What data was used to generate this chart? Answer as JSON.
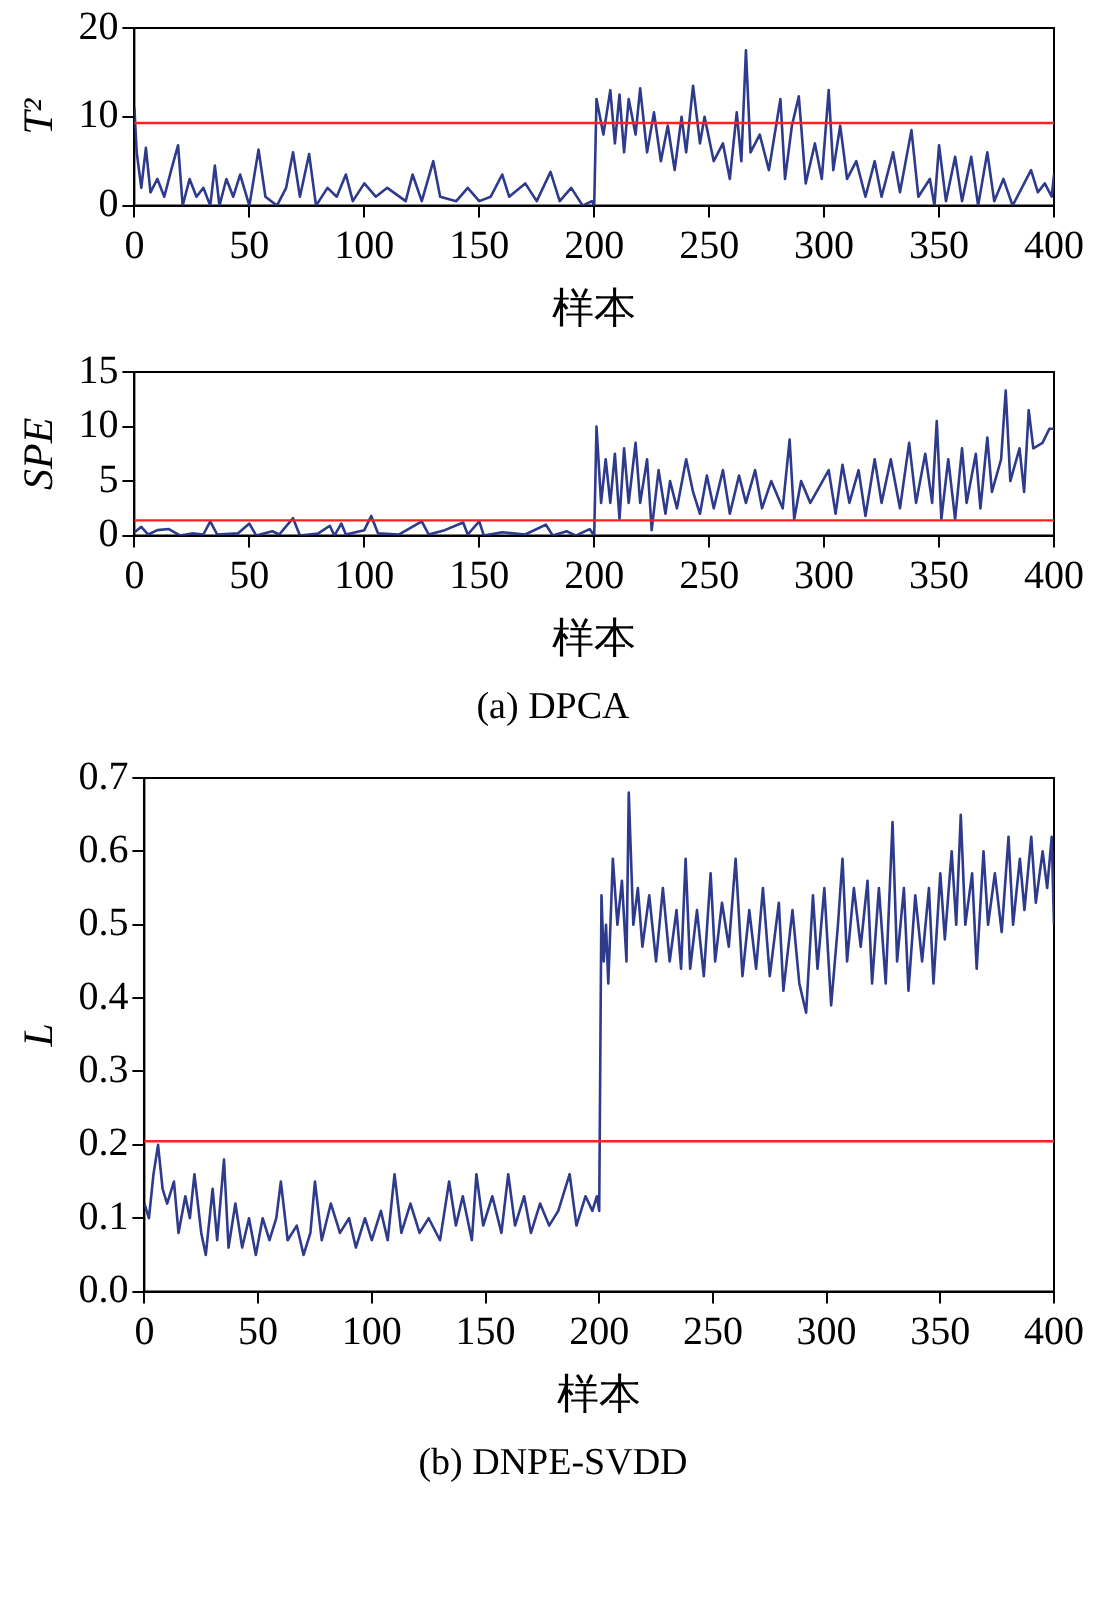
{
  "chart_data": [
    {
      "type": "line",
      "ylabel": "T²",
      "xlabel": "样本",
      "xlim": [
        0,
        400
      ],
      "xticks": [
        0,
        50,
        100,
        150,
        200,
        250,
        300,
        350,
        400
      ],
      "ylim": [
        0,
        20
      ],
      "yticks": [
        0,
        10,
        20
      ],
      "grid": false,
      "legend": false,
      "marker": "none",
      "line_style": "solid",
      "ref_lines": [
        {
          "axis": "y",
          "value": 9.3,
          "color": "#ff2020"
        }
      ],
      "series": [
        {
          "color": "#2e3a8c",
          "x": [
            0,
            1,
            3,
            5,
            7,
            10,
            13,
            16,
            19,
            21,
            24,
            27,
            30,
            33,
            35,
            37,
            40,
            43,
            46,
            50,
            54,
            57,
            62,
            66,
            69,
            72,
            76,
            79,
            84,
            88,
            92,
            95,
            100,
            105,
            110,
            118,
            121,
            125,
            130,
            133,
            140,
            145,
            150,
            155,
            160,
            163,
            170,
            175,
            181,
            185,
            190,
            195,
            199,
            200,
            201,
            204,
            207,
            209,
            211,
            213,
            215,
            218,
            220,
            223,
            226,
            229,
            232,
            235,
            238,
            240,
            243,
            246,
            248,
            252,
            256,
            259,
            262,
            264,
            266,
            268,
            272,
            276,
            281,
            283,
            286,
            289,
            292,
            296,
            299,
            302,
            304,
            307,
            310,
            314,
            318,
            322,
            325,
            330,
            333,
            338,
            341,
            346,
            348,
            350,
            353,
            357,
            360,
            364,
            367,
            371,
            374,
            378,
            382,
            386,
            390,
            393,
            396,
            399,
            400
          ],
          "values": [
            11,
            6,
            2,
            6.5,
            1.5,
            3,
            1,
            4,
            6.8,
            0,
            3,
            1,
            2,
            0,
            4.5,
            0,
            3,
            1,
            3.5,
            0,
            6.3,
            1,
            0,
            2,
            6,
            1,
            5.8,
            0,
            2,
            1,
            3.5,
            0.5,
            2.5,
            1,
            2,
            0.5,
            3.5,
            0.5,
            5,
            1,
            0.5,
            2,
            0.5,
            1,
            3.5,
            1,
            2.5,
            0.5,
            3.8,
            0.5,
            2,
            0,
            0.5,
            0,
            12,
            8,
            13,
            7,
            12.5,
            6,
            12,
            8,
            13.2,
            6,
            10.5,
            5,
            9,
            4,
            10,
            6,
            13.5,
            7,
            10,
            5,
            7,
            3,
            10.5,
            5,
            17.5,
            6,
            8,
            4,
            12,
            3,
            9,
            12.3,
            2.5,
            7,
            3,
            13,
            4,
            9,
            3,
            5,
            1,
            5,
            1,
            6,
            1.5,
            8.5,
            1,
            3,
            0,
            6.8,
            0.5,
            5.5,
            0.5,
            5.5,
            0,
            6,
            0.5,
            3,
            0,
            2,
            4,
            1.5,
            2.5,
            1,
            3.5
          ]
        }
      ]
    },
    {
      "type": "line",
      "ylabel": "SPE",
      "xlabel": "样本",
      "xlim": [
        0,
        400
      ],
      "xticks": [
        0,
        50,
        100,
        150,
        200,
        250,
        300,
        350,
        400
      ],
      "ylim": [
        0,
        15
      ],
      "yticks": [
        0,
        5,
        10,
        15
      ],
      "grid": false,
      "legend": false,
      "marker": "none",
      "line_style": "solid",
      "ref_lines": [
        {
          "axis": "y",
          "value": 1.4,
          "color": "#ff2020"
        }
      ],
      "annotations": [
        "(a) DPCA"
      ],
      "series": [
        {
          "color": "#2e3a8c",
          "x": [
            0,
            3,
            6,
            10,
            15,
            20,
            25,
            30,
            33,
            36,
            45,
            50,
            53,
            60,
            63,
            69,
            72,
            80,
            85,
            87,
            90,
            92,
            100,
            103,
            106,
            115,
            125,
            128,
            135,
            143,
            145,
            150,
            152,
            160,
            170,
            179,
            182,
            188,
            192,
            198,
            200,
            201,
            203,
            205,
            207,
            209,
            211,
            213,
            215,
            218,
            220,
            223,
            225,
            228,
            231,
            233,
            236,
            240,
            243,
            246,
            249,
            252,
            256,
            259,
            263,
            266,
            270,
            273,
            277,
            282,
            285,
            287,
            290,
            294,
            298,
            302,
            305,
            308,
            311,
            315,
            318,
            322,
            325,
            329,
            333,
            337,
            340,
            344,
            347,
            349,
            351,
            354,
            357,
            360,
            362,
            366,
            368,
            371,
            373,
            377,
            379,
            381,
            385,
            387,
            389,
            391,
            395,
            398,
            400
          ],
          "values": [
            0.3,
            0.8,
            0.1,
            0.5,
            0.6,
            0,
            0.2,
            0.1,
            1.3,
            0.1,
            0.2,
            1.1,
            0,
            0.4,
            0.1,
            1.6,
            0,
            0.2,
            0.9,
            0,
            1.1,
            0.1,
            0.5,
            1.8,
            0.2,
            0.1,
            1.3,
            0.1,
            0.5,
            1.2,
            0.1,
            1.3,
            0,
            0.3,
            0.1,
            1,
            0,
            0.4,
            0,
            0.6,
            0,
            10,
            3,
            7,
            3,
            7.5,
            1.5,
            8,
            3,
            8.5,
            3,
            7,
            0.5,
            6,
            2,
            5,
            2.5,
            7,
            4,
            2,
            5.5,
            2.5,
            6,
            2,
            5.5,
            3,
            6,
            2.5,
            5,
            2.5,
            8.8,
            1.5,
            5,
            3,
            4.5,
            6,
            2,
            6.5,
            3,
            6,
            1.8,
            7,
            3,
            7,
            2.5,
            8.5,
            3,
            7.5,
            3,
            10.5,
            1.5,
            7,
            1.5,
            8,
            3,
            7.5,
            2.5,
            9,
            4,
            7,
            13.3,
            5,
            8,
            4,
            11.5,
            8,
            8.5,
            9.8,
            9.8
          ]
        }
      ]
    },
    {
      "type": "line",
      "ylabel": "L",
      "xlabel": "样本",
      "xlim": [
        0,
        400
      ],
      "xticks": [
        0,
        50,
        100,
        150,
        200,
        250,
        300,
        350,
        400
      ],
      "ylim": [
        0,
        0.7
      ],
      "yticks": [
        {
          "value": 0,
          "label": "0.0"
        },
        0.1,
        0.2,
        0.3,
        0.4,
        0.5,
        0.6,
        0.7
      ],
      "grid": false,
      "legend": false,
      "marker": "none",
      "line_style": "solid",
      "ref_lines": [
        {
          "axis": "y",
          "value": 0.205,
          "color": "#ff2020"
        }
      ],
      "annotations": [
        "(b) DNPE-SVDD"
      ],
      "series": [
        {
          "color": "#2e3a8c",
          "x": [
            0,
            2,
            4,
            6,
            8,
            10,
            13,
            15,
            18,
            20,
            22,
            25,
            27,
            30,
            32,
            35,
            37,
            40,
            43,
            46,
            49,
            52,
            55,
            58,
            60,
            63,
            67,
            70,
            73,
            75,
            78,
            82,
            86,
            90,
            93,
            97,
            100,
            104,
            107,
            110,
            113,
            117,
            121,
            125,
            130,
            134,
            137,
            140,
            144,
            146,
            149,
            153,
            157,
            160,
            163,
            167,
            170,
            174,
            178,
            182,
            187,
            190,
            194,
            197,
            199,
            200,
            201,
            202,
            203,
            204,
            206,
            208,
            210,
            212,
            213,
            215,
            217,
            219,
            222,
            225,
            228,
            231,
            234,
            236,
            238,
            240,
            243,
            246,
            249,
            251,
            254,
            257,
            260,
            263,
            266,
            269,
            272,
            275,
            279,
            281,
            285,
            288,
            291,
            294,
            296,
            299,
            302,
            305,
            307,
            309,
            312,
            315,
            318,
            320,
            323,
            326,
            329,
            331,
            334,
            336,
            339,
            342,
            345,
            347,
            350,
            352,
            355,
            357,
            359,
            361,
            364,
            366,
            369,
            371,
            374,
            377,
            380,
            382,
            385,
            387,
            390,
            392,
            395,
            397,
            399,
            400
          ],
          "values": [
            0.12,
            0.1,
            0.16,
            0.2,
            0.14,
            0.12,
            0.15,
            0.08,
            0.13,
            0.1,
            0.16,
            0.08,
            0.05,
            0.14,
            0.07,
            0.18,
            0.06,
            0.12,
            0.06,
            0.1,
            0.05,
            0.1,
            0.07,
            0.1,
            0.15,
            0.07,
            0.09,
            0.05,
            0.08,
            0.15,
            0.07,
            0.12,
            0.08,
            0.1,
            0.06,
            0.1,
            0.07,
            0.11,
            0.07,
            0.16,
            0.08,
            0.12,
            0.08,
            0.1,
            0.07,
            0.15,
            0.09,
            0.13,
            0.07,
            0.16,
            0.09,
            0.13,
            0.08,
            0.16,
            0.09,
            0.13,
            0.08,
            0.12,
            0.09,
            0.11,
            0.16,
            0.09,
            0.13,
            0.11,
            0.13,
            0.11,
            0.54,
            0.45,
            0.5,
            0.42,
            0.59,
            0.5,
            0.56,
            0.45,
            0.68,
            0.5,
            0.55,
            0.47,
            0.54,
            0.45,
            0.55,
            0.45,
            0.52,
            0.44,
            0.59,
            0.44,
            0.52,
            0.43,
            0.57,
            0.45,
            0.53,
            0.47,
            0.59,
            0.43,
            0.52,
            0.44,
            0.55,
            0.43,
            0.53,
            0.41,
            0.52,
            0.42,
            0.38,
            0.54,
            0.44,
            0.55,
            0.39,
            0.5,
            0.59,
            0.45,
            0.55,
            0.47,
            0.56,
            0.42,
            0.55,
            0.42,
            0.64,
            0.45,
            0.55,
            0.41,
            0.54,
            0.45,
            0.55,
            0.42,
            0.57,
            0.48,
            0.6,
            0.5,
            0.65,
            0.5,
            0.57,
            0.44,
            0.6,
            0.5,
            0.57,
            0.49,
            0.62,
            0.5,
            0.59,
            0.52,
            0.62,
            0.53,
            0.6,
            0.55,
            0.62,
            0.5
          ]
        }
      ]
    }
  ]
}
